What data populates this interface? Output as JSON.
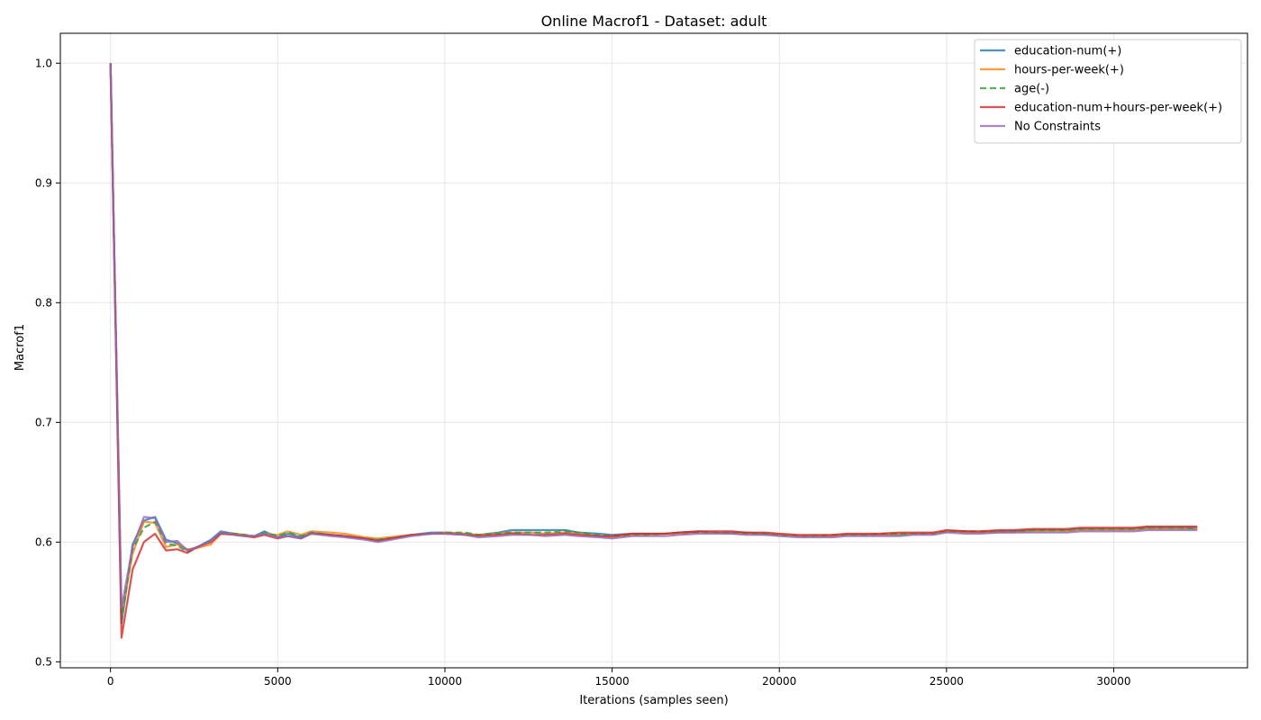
{
  "chart_data": {
    "type": "line",
    "title": "Online Macrof1 - Dataset: adult",
    "xlabel": "Iterations (samples seen)",
    "ylabel": "Macrof1",
    "xlim": [
      -1500,
      34000
    ],
    "ylim": [
      0.495,
      1.025
    ],
    "xticks": [
      0,
      5000,
      10000,
      15000,
      20000,
      25000,
      30000
    ],
    "xtick_labels": [
      "0",
      "5000",
      "10000",
      "15000",
      "20000",
      "25000",
      "30000"
    ],
    "yticks": [
      0.5,
      0.6,
      0.7,
      0.8,
      0.9,
      1.0
    ],
    "ytick_labels": [
      "0.5",
      "0.6",
      "0.7",
      "0.8",
      "0.9",
      "1.0"
    ],
    "grid": true,
    "legend_position": "top-right",
    "series": [
      {
        "name": "education-num(+)",
        "color": "#1f77b4",
        "dash": "solid",
        "x": [
          0,
          330,
          660,
          1000,
          1330,
          1660,
          2000,
          2300,
          2600,
          3000,
          3300,
          3700,
          4000,
          4300,
          4600,
          5000,
          5300,
          5700,
          6000,
          6600,
          7000,
          7600,
          8000,
          8600,
          9000,
          9600,
          10000,
          10600,
          11000,
          11600,
          12000,
          12600,
          13000,
          13600,
          14000,
          14600,
          15000,
          15600,
          16000,
          16600,
          17000,
          17600,
          18000,
          18600,
          19000,
          19600,
          20000,
          20600,
          21000,
          21600,
          22000,
          22600,
          23000,
          23600,
          24000,
          24600,
          25000,
          25600,
          26000,
          26600,
          27000,
          27600,
          28000,
          28600,
          29000,
          29600,
          30000,
          30600,
          31000,
          31600,
          32000,
          32500
        ],
        "values": [
          1.0,
          0.532,
          0.598,
          0.618,
          0.621,
          0.602,
          0.599,
          0.593,
          0.596,
          0.602,
          0.609,
          0.607,
          0.606,
          0.605,
          0.609,
          0.604,
          0.607,
          0.604,
          0.608,
          0.606,
          0.605,
          0.603,
          0.602,
          0.604,
          0.606,
          0.608,
          0.608,
          0.607,
          0.606,
          0.608,
          0.61,
          0.61,
          0.61,
          0.61,
          0.608,
          0.607,
          0.606,
          0.607,
          0.607,
          0.607,
          0.608,
          0.609,
          0.608,
          0.608,
          0.608,
          0.607,
          0.606,
          0.605,
          0.605,
          0.605,
          0.606,
          0.606,
          0.606,
          0.606,
          0.607,
          0.607,
          0.609,
          0.609,
          0.608,
          0.609,
          0.609,
          0.61,
          0.61,
          0.61,
          0.611,
          0.611,
          0.611,
          0.611,
          0.612,
          0.612,
          0.612,
          0.612
        ]
      },
      {
        "name": "hours-per-week(+)",
        "color": "#ff7f0e",
        "dash": "solid",
        "x": [
          0,
          330,
          660,
          1000,
          1330,
          1660,
          2000,
          2300,
          2600,
          3000,
          3300,
          3700,
          4000,
          4300,
          4600,
          5000,
          5300,
          5700,
          6000,
          6600,
          7000,
          7600,
          8000,
          8600,
          9000,
          9600,
          10000,
          10600,
          11000,
          11600,
          12000,
          12600,
          13000,
          13600,
          14000,
          14600,
          15000,
          15600,
          16000,
          16600,
          17000,
          17600,
          18000,
          18600,
          19000,
          19600,
          20000,
          20600,
          21000,
          21600,
          22000,
          22600,
          23000,
          23600,
          24000,
          24600,
          25000,
          25600,
          26000,
          26600,
          27000,
          27600,
          28000,
          28600,
          29000,
          29600,
          30000,
          30600,
          31000,
          31600,
          32000,
          32500
        ],
        "values": [
          1.0,
          0.54,
          0.59,
          0.617,
          0.616,
          0.596,
          0.598,
          0.594,
          0.595,
          0.598,
          0.607,
          0.607,
          0.606,
          0.605,
          0.607,
          0.606,
          0.609,
          0.606,
          0.609,
          0.608,
          0.607,
          0.604,
          0.603,
          0.605,
          0.606,
          0.607,
          0.608,
          0.607,
          0.606,
          0.607,
          0.608,
          0.608,
          0.607,
          0.608,
          0.607,
          0.605,
          0.604,
          0.606,
          0.606,
          0.607,
          0.607,
          0.608,
          0.608,
          0.607,
          0.607,
          0.606,
          0.606,
          0.605,
          0.605,
          0.605,
          0.606,
          0.606,
          0.606,
          0.607,
          0.607,
          0.607,
          0.609,
          0.608,
          0.608,
          0.608,
          0.608,
          0.609,
          0.609,
          0.609,
          0.61,
          0.61,
          0.61,
          0.61,
          0.611,
          0.611,
          0.611,
          0.611
        ]
      },
      {
        "name": "age(-)",
        "color": "#2ca02c",
        "dash": "dashed",
        "x": [
          0,
          330,
          660,
          1000,
          1330,
          1660,
          2000,
          2300,
          2600,
          3000,
          3300,
          3700,
          4000,
          4300,
          4600,
          5000,
          5300,
          5700,
          6000,
          6600,
          7000,
          7600,
          8000,
          8600,
          9000,
          9600,
          10000,
          10600,
          11000,
          11600,
          12000,
          12600,
          13000,
          13600,
          14000,
          14600,
          15000,
          15600,
          16000,
          16600,
          17000,
          17600,
          18000,
          18600,
          19000,
          19600,
          20000,
          20600,
          21000,
          21600,
          22000,
          22600,
          23000,
          23600,
          24000,
          24600,
          25000,
          25600,
          26000,
          26600,
          27000,
          27600,
          28000,
          28600,
          29000,
          29600,
          30000,
          30600,
          31000,
          31600,
          32000,
          32500
        ],
        "values": [
          1.0,
          0.535,
          0.594,
          0.612,
          0.617,
          0.599,
          0.597,
          0.592,
          0.596,
          0.601,
          0.608,
          0.607,
          0.606,
          0.605,
          0.608,
          0.605,
          0.608,
          0.605,
          0.608,
          0.606,
          0.605,
          0.603,
          0.602,
          0.604,
          0.606,
          0.607,
          0.608,
          0.608,
          0.606,
          0.607,
          0.608,
          0.608,
          0.608,
          0.609,
          0.608,
          0.606,
          0.605,
          0.606,
          0.606,
          0.607,
          0.608,
          0.608,
          0.608,
          0.608,
          0.607,
          0.607,
          0.606,
          0.605,
          0.605,
          0.606,
          0.606,
          0.606,
          0.607,
          0.607,
          0.607,
          0.607,
          0.609,
          0.609,
          0.609,
          0.609,
          0.609,
          0.61,
          0.61,
          0.61,
          0.611,
          0.611,
          0.611,
          0.611,
          0.612,
          0.612,
          0.612,
          0.611
        ]
      },
      {
        "name": "education-num+hours-per-week(+)",
        "color": "#d62728",
        "dash": "solid",
        "x": [
          0,
          330,
          660,
          1000,
          1330,
          1660,
          2000,
          2300,
          2600,
          3000,
          3300,
          3700,
          4000,
          4300,
          4600,
          5000,
          5300,
          5700,
          6000,
          6600,
          7000,
          7600,
          8000,
          8600,
          9000,
          9600,
          10000,
          10600,
          11000,
          11600,
          12000,
          12600,
          13000,
          13600,
          14000,
          14600,
          15000,
          15600,
          16000,
          16600,
          17000,
          17600,
          18000,
          18600,
          19000,
          19600,
          20000,
          20600,
          21000,
          21600,
          22000,
          22600,
          23000,
          23600,
          24000,
          24600,
          25000,
          25600,
          26000,
          26600,
          27000,
          27600,
          28000,
          28600,
          29000,
          29600,
          30000,
          30600,
          31000,
          31600,
          32000,
          32500
        ],
        "values": [
          1.0,
          0.52,
          0.577,
          0.6,
          0.607,
          0.593,
          0.594,
          0.591,
          0.596,
          0.6,
          0.607,
          0.606,
          0.605,
          0.604,
          0.606,
          0.603,
          0.605,
          0.603,
          0.607,
          0.606,
          0.605,
          0.603,
          0.601,
          0.604,
          0.606,
          0.607,
          0.607,
          0.606,
          0.605,
          0.606,
          0.607,
          0.606,
          0.606,
          0.607,
          0.606,
          0.605,
          0.605,
          0.607,
          0.607,
          0.607,
          0.608,
          0.609,
          0.609,
          0.609,
          0.608,
          0.608,
          0.607,
          0.606,
          0.606,
          0.606,
          0.607,
          0.607,
          0.607,
          0.608,
          0.608,
          0.608,
          0.61,
          0.609,
          0.609,
          0.61,
          0.61,
          0.611,
          0.611,
          0.611,
          0.612,
          0.612,
          0.612,
          0.612,
          0.613,
          0.613,
          0.613,
          0.613
        ]
      },
      {
        "name": "No Constraints",
        "color": "#9467bd",
        "dash": "solid",
        "x": [
          0,
          330,
          660,
          1000,
          1330,
          1660,
          2000,
          2300,
          2600,
          3000,
          3300,
          3700,
          4000,
          4300,
          4600,
          5000,
          5300,
          5700,
          6000,
          6600,
          7000,
          7600,
          8000,
          8600,
          9000,
          9600,
          10000,
          10600,
          11000,
          11600,
          12000,
          12600,
          13000,
          13600,
          14000,
          14600,
          15000,
          15600,
          16000,
          16600,
          17000,
          17600,
          18000,
          18600,
          19000,
          19600,
          20000,
          20600,
          21000,
          21600,
          22000,
          22600,
          23000,
          23600,
          24000,
          24600,
          25000,
          25600,
          26000,
          26600,
          27000,
          27600,
          28000,
          28600,
          29000,
          29600,
          30000,
          30600,
          31000,
          31600,
          32000,
          32500
        ],
        "values": [
          1.0,
          0.545,
          0.596,
          0.621,
          0.62,
          0.6,
          0.601,
          0.593,
          0.596,
          0.601,
          0.608,
          0.606,
          0.605,
          0.605,
          0.607,
          0.604,
          0.605,
          0.603,
          0.607,
          0.605,
          0.604,
          0.602,
          0.6,
          0.603,
          0.605,
          0.607,
          0.607,
          0.606,
          0.604,
          0.605,
          0.606,
          0.606,
          0.605,
          0.606,
          0.605,
          0.604,
          0.603,
          0.605,
          0.605,
          0.605,
          0.606,
          0.607,
          0.607,
          0.607,
          0.606,
          0.606,
          0.605,
          0.604,
          0.604,
          0.604,
          0.605,
          0.605,
          0.605,
          0.605,
          0.606,
          0.606,
          0.608,
          0.607,
          0.607,
          0.608,
          0.608,
          0.608,
          0.608,
          0.608,
          0.609,
          0.609,
          0.609,
          0.609,
          0.61,
          0.61,
          0.61,
          0.61
        ]
      }
    ]
  }
}
